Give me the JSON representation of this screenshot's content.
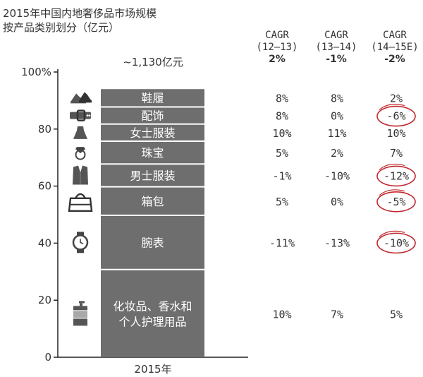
{
  "title_line1": "2015年中国内地奢侈品市场规模",
  "title_line2": "按产品类别划分（亿元）",
  "total_label": "~1,130亿元",
  "cagr_headers": [
    {
      "label": "CAGR",
      "period": "(12–13)",
      "total": "2%"
    },
    {
      "label": "CAGR",
      "period": "(13–14)",
      "total": "-1%"
    },
    {
      "label": "CAGR",
      "period": "(14–15E)",
      "total": "-2%"
    }
  ],
  "chart_data": {
    "type": "bar",
    "stacked": true,
    "categories": [
      "2015年"
    ],
    "ylim": [
      0,
      100
    ],
    "yticks": [
      0,
      20,
      40,
      60,
      80,
      100
    ],
    "ytick_labels": [
      "0",
      "20",
      "40",
      "60",
      "80",
      "100%"
    ],
    "series": [
      {
        "name": "化妆品、香水和个人护理用品",
        "icon": "perfume-bottle-icon",
        "values": [
          31
        ],
        "cagr": [
          "10%",
          "7%",
          "5%"
        ],
        "circled": [
          false,
          false,
          false
        ]
      },
      {
        "name": "腕表",
        "icon": "watch-icon",
        "values": [
          19
        ],
        "cagr": [
          "-11%",
          "-13%",
          "-10%"
        ],
        "circled": [
          false,
          false,
          true
        ]
      },
      {
        "name": "箱包",
        "icon": "handbag-icon",
        "values": [
          10
        ],
        "cagr": [
          "5%",
          "0%",
          "-5%"
        ],
        "circled": [
          false,
          false,
          true
        ]
      },
      {
        "name": "男士服装",
        "icon": "suit-jacket-icon",
        "values": [
          8
        ],
        "cagr": [
          "-1%",
          "-10%",
          "-12%"
        ],
        "circled": [
          false,
          false,
          true
        ]
      },
      {
        "name": "珠宝",
        "icon": "ring-icon",
        "values": [
          8
        ],
        "cagr": [
          "5%",
          "2%",
          "7%"
        ],
        "circled": [
          false,
          false,
          false
        ]
      },
      {
        "name": "女士服装",
        "icon": "dress-icon",
        "values": [
          6
        ],
        "cagr": [
          "10%",
          "11%",
          "10%"
        ],
        "circled": [
          false,
          false,
          false
        ]
      },
      {
        "name": "配饰",
        "icon": "belt-icon",
        "values": [
          6
        ],
        "cagr": [
          "8%",
          "0%",
          "-6%"
        ],
        "circled": [
          false,
          false,
          true
        ]
      },
      {
        "name": "鞋履",
        "icon": "shoes-icon",
        "values": [
          6
        ],
        "cagr": [
          "8%",
          "8%",
          "2%"
        ],
        "circled": [
          false,
          false,
          false
        ]
      }
    ]
  },
  "colors": {
    "bar": "#6e6e6e",
    "bar_text": "#ffffff",
    "circle": "#c0282d",
    "axis": "#222222"
  }
}
